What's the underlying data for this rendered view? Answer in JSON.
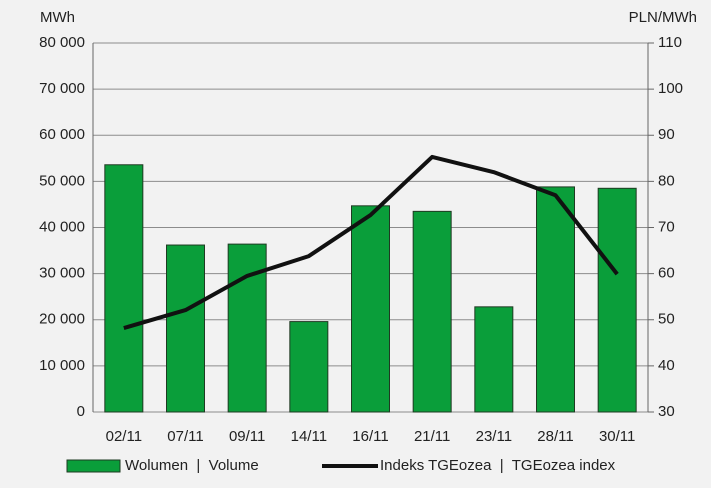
{
  "chart_data": {
    "type": "bar_line",
    "y_label": "MWh",
    "y2_label": "PLN/MWh",
    "categories": [
      "02/11",
      "07/11",
      "09/11",
      "14/11",
      "16/11",
      "21/11",
      "23/11",
      "28/11",
      "30/11"
    ],
    "series": [
      {
        "name": "Wolumen  |  Volume",
        "type": "bar",
        "color": "#0a9e3a",
        "values": [
          53600,
          36200,
          36400,
          19600,
          44700,
          43500,
          22800,
          48800,
          48500
        ]
      },
      {
        "name": "Indeks TGEozea  |  TGEozea index",
        "type": "line",
        "axis": "y2",
        "color": "#111111",
        "values": [
          48.2,
          52.1,
          59.5,
          63.8,
          72.7,
          85.3,
          82,
          77,
          59.9
        ]
      }
    ],
    "ylim": [
      0,
      80000
    ],
    "yticks": [
      0,
      {
        "value": 10000,
        "label": "10 000"
      },
      {
        "value": 20000,
        "label": "20 000"
      },
      {
        "value": 30000,
        "label": "30 000"
      },
      {
        "value": 40000,
        "label": "40 000"
      },
      {
        "value": 50000,
        "label": "50 000"
      },
      {
        "value": 60000,
        "label": "60 000"
      },
      {
        "value": 70000,
        "label": "70 000"
      },
      {
        "value": 80000,
        "label": "80 000"
      }
    ],
    "y2lim": [
      30,
      110
    ],
    "y2ticks": [
      30,
      40,
      50,
      60,
      70,
      80,
      90,
      100,
      110
    ],
    "grid": true
  }
}
